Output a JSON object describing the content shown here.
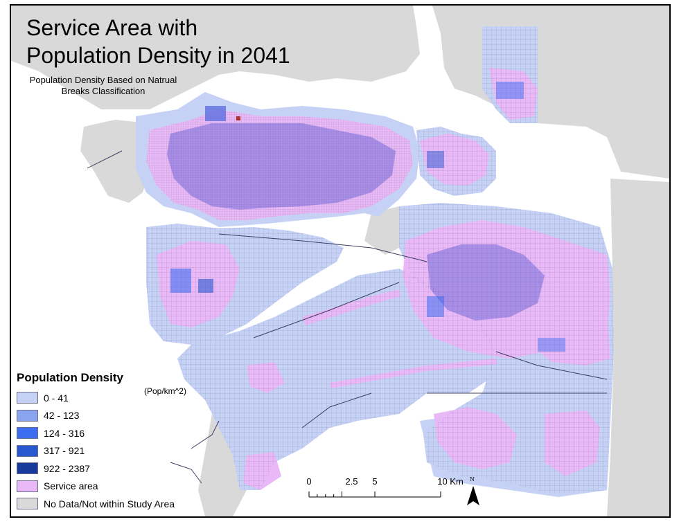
{
  "title": "Service Area with\nPopulation Density in 2041",
  "subtitle": "Population Density Based on Natrual\nBreaks Classification",
  "legend": {
    "title": "Population Density",
    "unit": "(Pop/km^2)",
    "items": [
      {
        "label": "0 - 41",
        "color": "#c5d1f5"
      },
      {
        "label": "42 - 123",
        "color": "#8aa4f0"
      },
      {
        "label": "124 - 316",
        "color": "#3d6ef0"
      },
      {
        "label": "317 - 921",
        "color": "#2858d0"
      },
      {
        "label": "922 - 2387",
        "color": "#183a9a"
      },
      {
        "label": "Service area",
        "color": "#e9b8f6"
      },
      {
        "label": "No Data/Not within Study Area",
        "color": "#d9d9d9"
      }
    ]
  },
  "scalebar": {
    "ticks": [
      {
        "label": "0",
        "km": 0
      },
      {
        "label": "2.5",
        "km": 2.5
      },
      {
        "label": "5",
        "km": 5
      },
      {
        "label": "10 Km",
        "km": 10
      }
    ]
  },
  "north_arrow": {
    "label": "N"
  },
  "colors": {
    "water": "#ffffff",
    "no_data": "#d9d9d9",
    "base_density": "#c5d1f5",
    "service_area": "#e9b8f6",
    "service_overlap": "#a98ee8",
    "roads": "#3a3f5e"
  }
}
